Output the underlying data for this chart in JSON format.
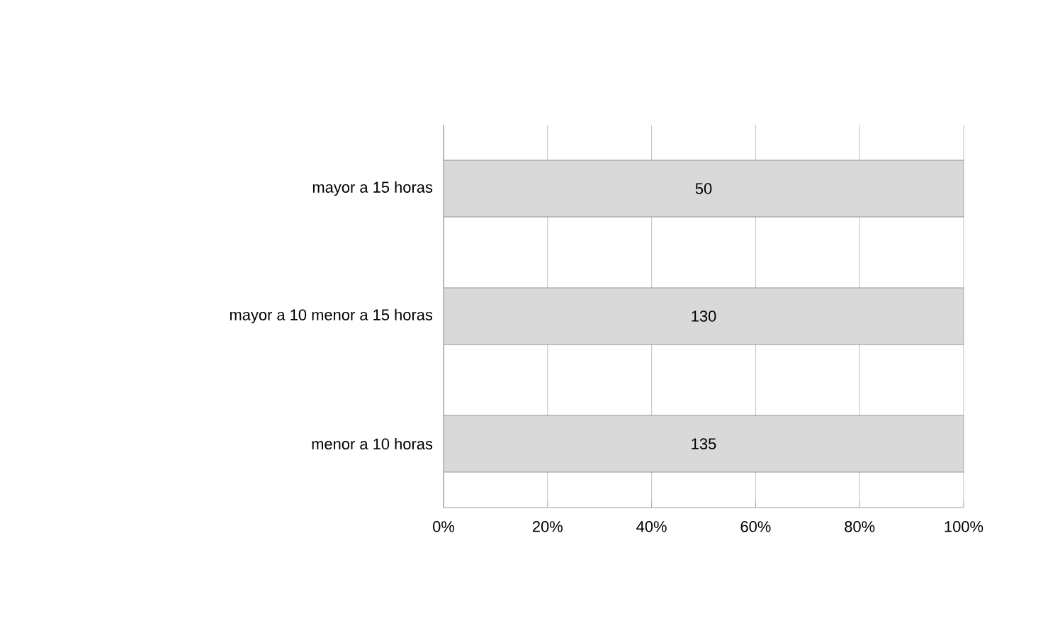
{
  "chart_data": {
    "type": "bar",
    "orientation": "horizontal",
    "categories": [
      "mayor a 15 horas",
      "mayor a 10 menor a 15 horas",
      "menor a 10 horas"
    ],
    "values": [
      100,
      100,
      100
    ],
    "annotations": [
      "50",
      "130",
      "135"
    ],
    "color": "#d9d9d9",
    "xlim": [
      0,
      100
    ],
    "xticks": [
      {
        "value": 0,
        "label": "0%"
      },
      {
        "value": 20,
        "label": "20%"
      },
      {
        "value": 40,
        "label": "40%"
      },
      {
        "value": 60,
        "label": "60%"
      },
      {
        "value": 80,
        "label": "80%"
      },
      {
        "value": 100,
        "label": "100%"
      }
    ],
    "grid": "x"
  }
}
